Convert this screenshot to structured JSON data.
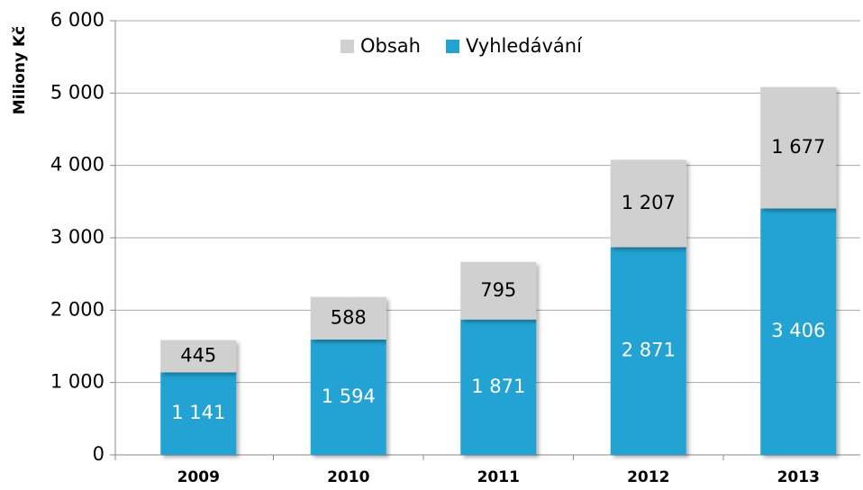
{
  "chart_data": {
    "type": "stacked_bar",
    "y_axis_label": "Miliony Kč",
    "categories": [
      "2009",
      "2010",
      "2011",
      "2012",
      "2013"
    ],
    "series": [
      {
        "name": "Vyhledávání",
        "color": "#22a3d3",
        "values": [
          1141,
          1594,
          1871,
          2871,
          3406
        ],
        "value_labels": [
          "1 141",
          "1 594",
          "1 871",
          "2 871",
          "3 406"
        ]
      },
      {
        "name": "Obsah",
        "color": "#d0d0d0",
        "values": [
          445,
          588,
          795,
          1207,
          1677
        ],
        "value_labels": [
          "445",
          "588",
          "795",
          "1 207",
          "1 677"
        ]
      }
    ],
    "ylim": [
      0,
      6000
    ],
    "yticks": [
      0,
      {
        "value": 1000,
        "label": "1 000"
      },
      {
        "value": 2000,
        "label": "2 000"
      },
      {
        "value": 3000,
        "label": "3 000"
      },
      {
        "value": 4000,
        "label": "4 000"
      },
      {
        "value": 5000,
        "label": "5 000"
      },
      {
        "value": 6000,
        "label": "6 000"
      }
    ],
    "grid": true,
    "legend": "top"
  }
}
